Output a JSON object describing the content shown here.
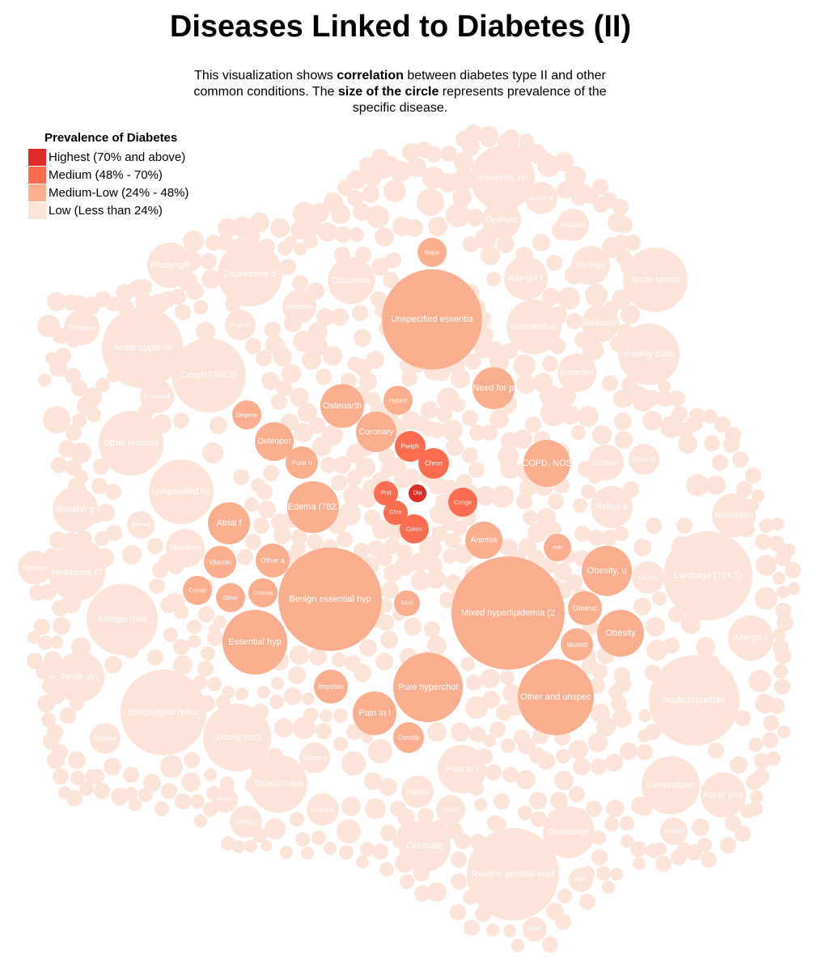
{
  "header": {
    "title": "Diseases Linked to Diabetes (II)",
    "subtitle_parts": [
      {
        "text": "This visualization shows ",
        "bold": false
      },
      {
        "text": "correlation",
        "bold": true
      },
      {
        "text": " between diabetes type II and other common conditions. The ",
        "bold": false
      },
      {
        "text": "size of the circle",
        "bold": true
      },
      {
        "text": " represents prevalence of the specific disease.",
        "bold": false
      }
    ]
  },
  "legend": {
    "title": "Prevalence of Diabetes",
    "items": [
      {
        "label": "Highest (70% and above)",
        "color": "#de2d26"
      },
      {
        "label": "Medium (48% - 70%)",
        "color": "#fc6c4f"
      },
      {
        "label": "Medium-Low (24% - 48%)",
        "color": "#fbae8e"
      },
      {
        "label": "Low (Less than 24%)",
        "color": "#fde4d9"
      }
    ]
  },
  "chart_data": {
    "type": "bubble",
    "color_key": {
      "highest": "#de2d26",
      "medium": "#fc6c4f",
      "medium_low": "#fbae8e",
      "low": "#fde4d9"
    },
    "bubbles": [
      {
        "label": "Unspecified essentia",
        "level": "medium_low",
        "size": 5.4
      },
      {
        "label": "Benign essential hyp",
        "level": "medium_low",
        "size": 6.4
      },
      {
        "label": "Mixed hyperlipidemia (2",
        "level": "medium_low",
        "size": 7.0
      },
      {
        "label": "Essential hyp",
        "level": "medium_low",
        "size": 2.8
      },
      {
        "label": "Other and unspec",
        "level": "medium_low",
        "size": 3.5
      },
      {
        "label": "Pure hyperchol",
        "level": "medium_low",
        "size": 2.8
      },
      {
        "label": "Edema (782.",
        "level": "medium_low",
        "size": 1.8
      },
      {
        "label": "Osteoarth",
        "level": "medium_low",
        "size": 1.2
      },
      {
        "label": "COPD, NOS",
        "level": "medium_low",
        "size": 1.4
      },
      {
        "label": "Need for p",
        "level": "medium_low",
        "size": 1.0
      },
      {
        "label": "Obesity, u",
        "level": "medium_low",
        "size": 1.3
      },
      {
        "label": "Obesity",
        "level": "medium_low",
        "size": 1.0
      },
      {
        "label": "Atrial f",
        "level": "medium_low",
        "size": 1.0
      },
      {
        "label": "Major",
        "level": "medium_low",
        "size": 0.5
      },
      {
        "label": "Anemia",
        "level": "medium_low",
        "size": 0.8
      },
      {
        "label": "Coronary",
        "level": "medium_low",
        "size": 0.9
      },
      {
        "label": "Pain in l",
        "level": "medium_low",
        "size": 1.0
      },
      {
        "label": "Osteopor",
        "level": "medium_low",
        "size": 0.8
      },
      {
        "label": "Pure h",
        "level": "medium_low",
        "size": 0.6
      },
      {
        "label": "Vitamin",
        "level": "medium_low",
        "size": 0.6
      },
      {
        "label": "Impoten",
        "level": "medium_low",
        "size": 0.7
      },
      {
        "label": "Obstruc",
        "level": "medium_low",
        "size": 0.7
      },
      {
        "label": "Morbid",
        "level": "medium_low",
        "size": 0.6
      },
      {
        "label": "Constip",
        "level": "medium_low",
        "size": 0.6
      },
      {
        "label": "Other a",
        "level": "medium_low",
        "size": 0.6
      },
      {
        "label": "Degene",
        "level": "medium_low",
        "size": 0.5
      },
      {
        "label": "Hypert",
        "level": "medium_low",
        "size": 0.5
      },
      {
        "label": "Iron",
        "level": "medium_low",
        "size": 0.4
      },
      {
        "label": "Other",
        "level": "medium_low",
        "size": 0.5
      },
      {
        "label": "Osteoa",
        "level": "medium_low",
        "size": 0.5
      },
      {
        "label": "Consti",
        "level": "medium_low",
        "size": 0.5
      },
      {
        "label": "Gout",
        "level": "medium_low",
        "size": 0.4
      },
      {
        "label": "Periph",
        "level": "medium",
        "size": 0.5
      },
      {
        "label": "Chron",
        "level": "medium",
        "size": 0.5
      },
      {
        "label": "Conge",
        "level": "medium",
        "size": 0.5
      },
      {
        "label": "Coron",
        "level": "medium",
        "size": 0.5
      },
      {
        "label": "Prot",
        "level": "medium",
        "size": 0.4
      },
      {
        "label": "Chro",
        "level": "medium",
        "size": 0.4
      },
      {
        "label": "Dia",
        "level": "highest",
        "size": 0.3
      },
      {
        "label": "Acute upper re",
        "level": "low",
        "size": 4.0
      },
      {
        "label": "Cough (786.2)",
        "level": "low",
        "size": 3.5
      },
      {
        "label": "Lumbago (724.2)",
        "level": "low",
        "size": 5.0
      },
      {
        "label": "Acute bronchitis",
        "level": "low",
        "size": 5.0
      },
      {
        "label": "Routine general med",
        "level": "low",
        "size": 5.6
      },
      {
        "label": "Esophageal reflux",
        "level": "low",
        "size": 4.5
      },
      {
        "label": "Allergic rhini",
        "level": "low",
        "size": 3.5
      },
      {
        "label": "Urinary tract",
        "level": "low",
        "size": 3.0
      },
      {
        "label": "Other malaise",
        "level": "low",
        "size": 2.8
      },
      {
        "label": "Unspecified hy",
        "level": "low",
        "size": 2.8
      },
      {
        "label": "Acute sinusit",
        "level": "low",
        "size": 2.8
      },
      {
        "label": "Anxiety state",
        "level": "low",
        "size": 2.8
      },
      {
        "label": "Insomnia, un",
        "level": "low",
        "size": 2.5
      },
      {
        "label": "Depressive d",
        "level": "low",
        "size": 2.5
      },
      {
        "label": "Unspecified",
        "level": "low",
        "size": 2.0
      },
      {
        "label": "Generalized",
        "level": "low",
        "size": 2.2
      },
      {
        "label": "Headache (7",
        "level": "low",
        "size": 2.0
      },
      {
        "label": "Acute sin",
        "level": "low",
        "size": 1.5
      },
      {
        "label": "Tobacco use",
        "level": "low",
        "size": 2.0
      },
      {
        "label": "Pain in l",
        "level": "low",
        "size": 1.6
      },
      {
        "label": "Overweigh",
        "level": "low",
        "size": 1.5
      },
      {
        "label": "Cervicalg",
        "level": "low",
        "size": 1.5
      },
      {
        "label": "Dizziness",
        "level": "low",
        "size": 1.5
      },
      {
        "label": "Pharyngitl",
        "level": "low",
        "size": 1.4
      },
      {
        "label": "Routine g",
        "level": "low",
        "size": 1.3
      },
      {
        "label": "Allergic r",
        "level": "low",
        "size": 1.3
      },
      {
        "label": "Acute pha",
        "level": "low",
        "size": 1.4
      },
      {
        "label": "Nonorgan",
        "level": "low",
        "size": 1.3
      },
      {
        "label": "Reflux e",
        "level": "low",
        "size": 1.3
      },
      {
        "label": "Chroni",
        "level": "low",
        "size": 1.0
      },
      {
        "label": "Impacted",
        "level": "low",
        "size": 1.1
      },
      {
        "label": "Dysthym",
        "level": "low",
        "size": 1.1
      },
      {
        "label": "Acute m",
        "level": "low",
        "size": 1.1
      },
      {
        "label": "Allergic r",
        "level": "low",
        "size": 1.1
      },
      {
        "label": "Myalgia",
        "level": "low",
        "size": 1.0
      },
      {
        "label": "Backache",
        "level": "low",
        "size": 1.0
      },
      {
        "label": "Palpita",
        "level": "low",
        "size": 1.0
      },
      {
        "label": "Dysuria",
        "level": "low",
        "size": 0.9
      },
      {
        "label": "Irritab",
        "level": "low",
        "size": 0.9
      },
      {
        "label": "Asthma",
        "level": "low",
        "size": 0.9
      },
      {
        "label": "Contact",
        "level": "low",
        "size": 0.8
      },
      {
        "label": "Rash an",
        "level": "low",
        "size": 0.8
      },
      {
        "label": "Diarrhea",
        "level": "low",
        "size": 0.8
      },
      {
        "label": "Allerg",
        "level": "low",
        "size": 0.8
      },
      {
        "label": "Malaise",
        "level": "low",
        "size": 0.8
      },
      {
        "label": "Spasm o",
        "level": "low",
        "size": 0.8
      },
      {
        "label": "Shortnes",
        "level": "low",
        "size": 0.8
      },
      {
        "label": "Dermat",
        "level": "low",
        "size": 0.7
      },
      {
        "label": "Thoracic",
        "level": "low",
        "size": 0.7
      },
      {
        "label": "Encount",
        "level": "low",
        "size": 0.7
      },
      {
        "label": "Pain in",
        "level": "low",
        "size": 0.8
      },
      {
        "label": "Impaired",
        "level": "low",
        "size": 0.8
      },
      {
        "label": "Elevate",
        "level": "low",
        "size": 0.7
      },
      {
        "label": "Sympto",
        "level": "low",
        "size": 0.6
      },
      {
        "label": "Atten",
        "level": "low",
        "size": 0.5
      },
      {
        "label": "Other",
        "level": "low",
        "size": 0.5
      }
    ]
  }
}
